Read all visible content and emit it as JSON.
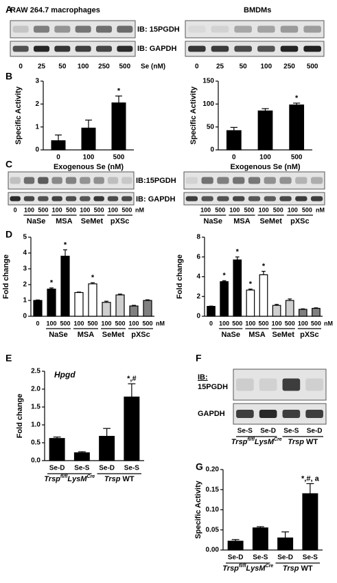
{
  "panel_labels": [
    "A",
    "B",
    "C",
    "D",
    "E",
    "F",
    "G"
  ],
  "blots": {
    "A": {
      "titles": [
        "RAW 264.7 macrophages",
        "BMDMs"
      ],
      "probes": [
        "IB: 15PGDH",
        "IB: GAPDH"
      ],
      "lanes": [
        "0",
        "25",
        "50",
        "100",
        "250",
        "500"
      ],
      "unit": "Se (nM)"
    },
    "C": {
      "probes": [
        "IB:15PGDH",
        "IB: GAPDH"
      ],
      "lanes": [
        "0",
        "100",
        "500",
        "100",
        "500",
        "100",
        "500",
        "100",
        "500"
      ],
      "unit": "nM",
      "groups": [
        "NaSe",
        "MSA",
        "SeMet",
        "pXSc"
      ]
    },
    "F": {
      "probes": [
        "IB:",
        "15PGDH",
        "GAPDH"
      ],
      "lanes": [
        "Se-S",
        "Se-D",
        "Se-S",
        "Se-D"
      ],
      "groups": [
        [
          "Trsp",
          "fl/fl",
          "LysM",
          "Cre"
        ],
        [
          "Trsp",
          "WT"
        ]
      ]
    }
  },
  "chart_data": [
    {
      "type": "bar",
      "ylabel": "Specific Activity",
      "xlabel": "Exogenous Se (nM)",
      "categories": [
        "0",
        "100",
        "500"
      ],
      "values": [
        0.4,
        0.95,
        2.05
      ],
      "errors": [
        0.25,
        0.35,
        0.3
      ],
      "significance": [
        null,
        null,
        "*"
      ],
      "color": "#000000",
      "ylim": [
        0,
        3
      ],
      "yticks": [
        0,
        1,
        2,
        3
      ]
    },
    {
      "type": "bar",
      "ylabel": "Specific Activity",
      "xlabel": "Exogenous Se (nM)",
      "categories": [
        "0",
        "100",
        "500"
      ],
      "values": [
        42,
        85,
        98
      ],
      "errors": [
        7,
        5,
        4
      ],
      "significance": [
        null,
        null,
        "*"
      ],
      "color": "#000000",
      "ylim": [
        0,
        150
      ],
      "yticks": [
        0,
        50,
        100,
        150
      ]
    },
    {
      "type": "bar",
      "ylabel": "Fold change",
      "categories": [
        "0",
        "100",
        "500",
        "100",
        "500",
        "100",
        "500",
        "100",
        "500"
      ],
      "groups": [
        "NaSe",
        "MSA",
        "SeMet",
        "pXSc"
      ],
      "unit": "nM",
      "values": [
        1,
        1.72,
        3.8,
        1.5,
        2.05,
        0.88,
        1.35,
        0.65,
        1.0
      ],
      "errors": [
        0.03,
        0.07,
        0.4,
        0.03,
        0.07,
        0.07,
        0.05,
        0.04,
        0.04
      ],
      "significance": [
        null,
        "*",
        "*",
        null,
        "*",
        null,
        null,
        null,
        null
      ],
      "colors": [
        "#000000",
        "#000000",
        "#000000",
        "#ffffff",
        "#ffffff",
        "#cfcfcf",
        "#cfcfcf",
        "#808080",
        "#808080"
      ],
      "ylim": [
        0,
        5
      ],
      "yticks": [
        0,
        1,
        2,
        3,
        4,
        5
      ]
    },
    {
      "type": "bar",
      "ylabel": "Fold change",
      "categories": [
        "0",
        "100",
        "500",
        "100",
        "500",
        "100",
        "500",
        "100",
        "500"
      ],
      "groups": [
        "NaSe",
        "MSA",
        "SeMet",
        "pXSc"
      ],
      "unit": "nM",
      "values": [
        1,
        3.5,
        5.7,
        2.65,
        4.2,
        1.1,
        1.6,
        0.7,
        0.8
      ],
      "errors": [
        0.03,
        0.1,
        0.3,
        0.1,
        0.35,
        0.1,
        0.15,
        0.05,
        0.05
      ],
      "significance": [
        null,
        "*",
        "*",
        "*",
        "*",
        null,
        null,
        null,
        null
      ],
      "colors": [
        "#000000",
        "#000000",
        "#000000",
        "#ffffff",
        "#ffffff",
        "#cfcfcf",
        "#cfcfcf",
        "#808080",
        "#808080"
      ],
      "ylim": [
        0,
        8
      ],
      "yticks": [
        0,
        2,
        4,
        6,
        8
      ]
    },
    {
      "type": "bar",
      "title": "Hpgd",
      "ylabel": "Fold change",
      "categories": [
        "Se-D",
        "Se-S",
        "Se-D",
        "Se-S"
      ],
      "groups": [
        [
          "Trsp",
          "fl/fl",
          "LysM",
          "Cre"
        ],
        [
          "Trsp",
          "WT"
        ]
      ],
      "values": [
        0.62,
        0.22,
        0.68,
        1.78
      ],
      "errors": [
        0.04,
        0.03,
        0.22,
        0.37
      ],
      "significance": [
        null,
        null,
        null,
        "*,#"
      ],
      "color": "#000000",
      "ylim": [
        0,
        2.5
      ],
      "yticks": [
        {
          "value": 0,
          "label": "0.0"
        },
        0.5,
        {
          "value": 1,
          "label": "1.0"
        },
        1.5,
        {
          "value": 2,
          "label": "2.0"
        },
        2.5
      ]
    },
    {
      "type": "bar",
      "ylabel": "Specific Activity",
      "categories": [
        "Se-D",
        "Se-S",
        "Se-D",
        "Se-S"
      ],
      "groups": [
        [
          "Trsp",
          "fl/fl",
          "LysM",
          "Cre"
        ],
        [
          "Trsp",
          "WT"
        ]
      ],
      "values": [
        0.022,
        0.055,
        0.03,
        0.14
      ],
      "errors": [
        0.004,
        0.003,
        0.015,
        0.025
      ],
      "significance": [
        null,
        null,
        null,
        "*,#, a"
      ],
      "color": "#000000",
      "ylim": [
        0,
        0.2
      ],
      "yticks": [
        {
          "value": 0,
          "label": "0.00"
        },
        {
          "value": 0.05,
          "label": "0.05"
        },
        {
          "value": 0.1,
          "label": "0.10"
        },
        {
          "value": 0.15,
          "label": "0.15"
        },
        {
          "value": 0.2,
          "label": "0.20"
        }
      ]
    }
  ]
}
